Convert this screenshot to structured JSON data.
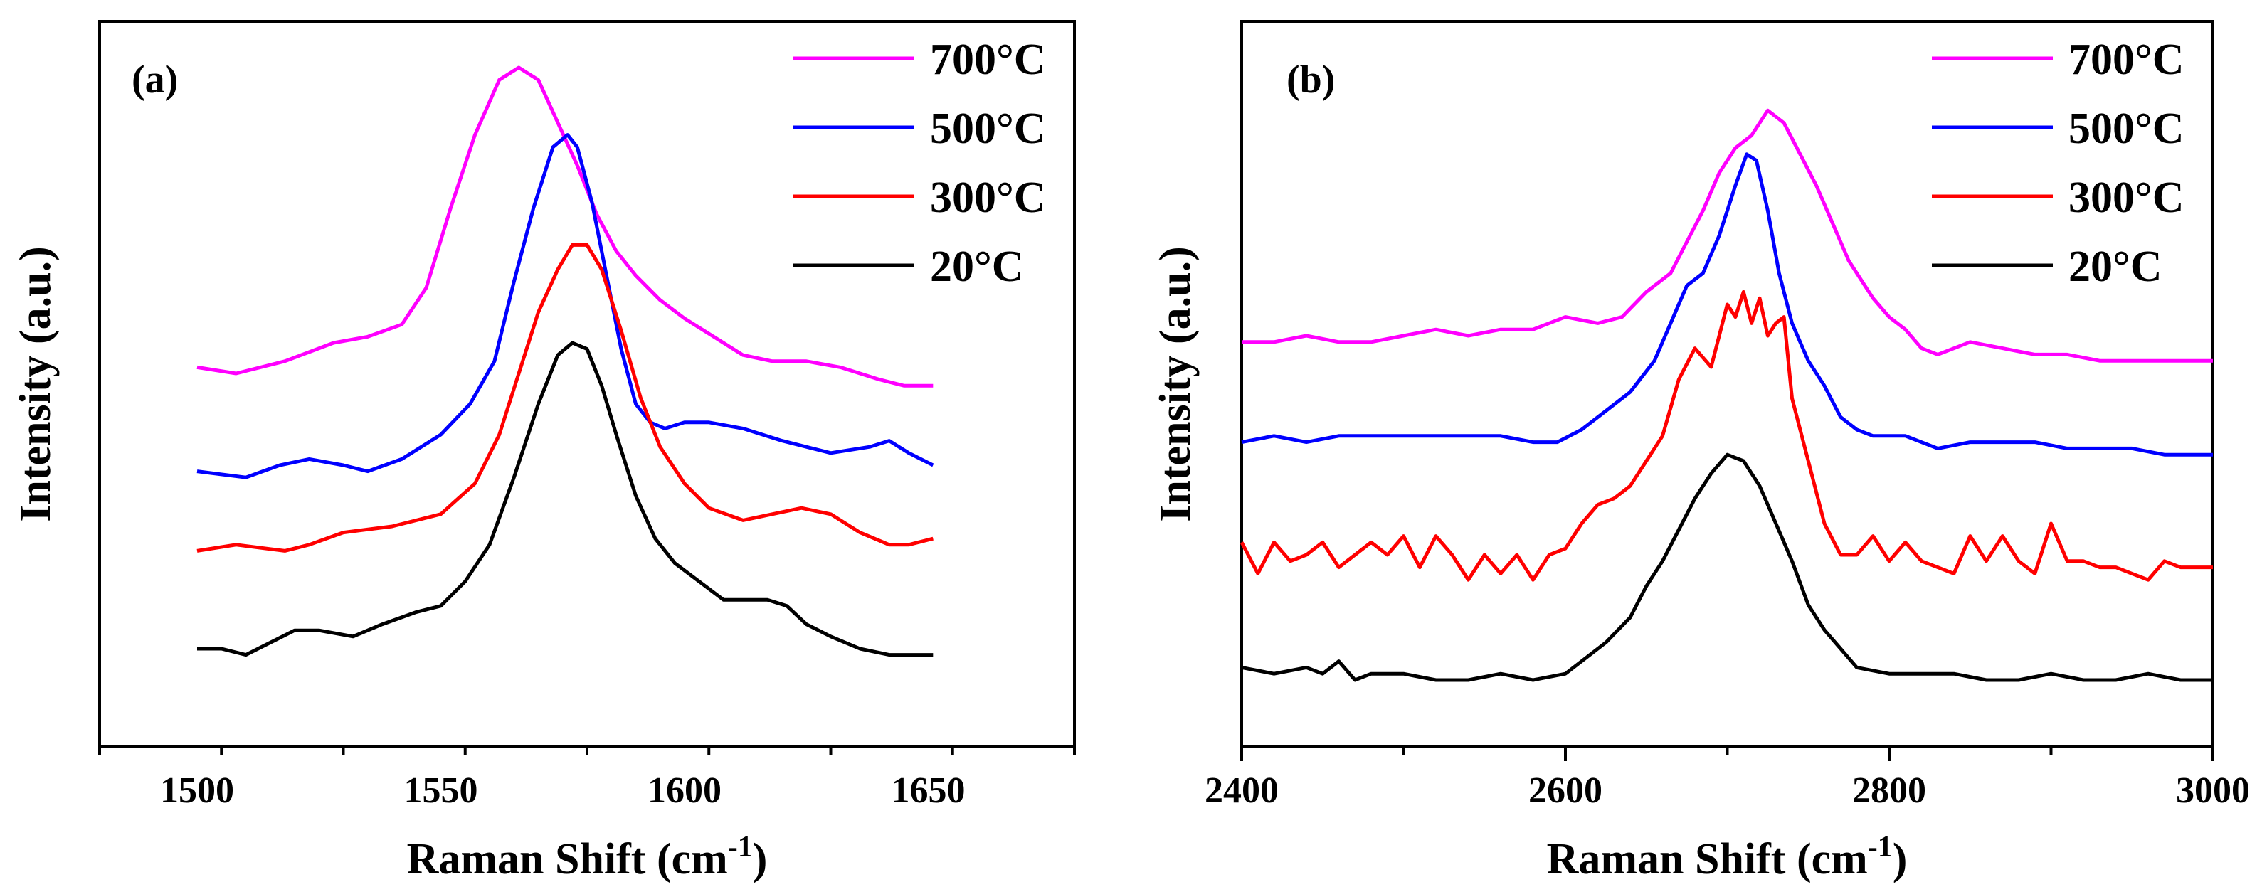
{
  "chart_data": [
    {
      "type": "line",
      "panel_label": "(a)",
      "xlabel": "Raman Shift (cm",
      "xlabel_sup": "-1",
      "xlabel_close": ")",
      "ylabel": "Intensity (a.u.)",
      "xlim": [
        1480,
        1680
      ],
      "ylim": [
        0,
        1
      ],
      "x_ticks": [
        1500,
        1550,
        1600,
        1650
      ],
      "x_tick_labels": [
        "1500",
        "1550",
        "1600",
        "1650"
      ],
      "y_ticks_shown": false,
      "legend": "top-right",
      "series": [
        {
          "name": "700°C",
          "color": "#ff00ff",
          "x": [
            1500,
            1508,
            1518,
            1528,
            1535,
            1542,
            1547,
            1552,
            1557,
            1562,
            1566,
            1570,
            1574,
            1578,
            1582,
            1586,
            1590,
            1595,
            1600,
            1606,
            1612,
            1618,
            1625,
            1632,
            1640,
            1645,
            1651
          ],
          "y": [
            0.51,
            0.5,
            0.52,
            0.55,
            0.56,
            0.58,
            0.64,
            0.77,
            0.89,
            0.98,
            1.0,
            0.98,
            0.91,
            0.84,
            0.76,
            0.7,
            0.66,
            0.62,
            0.59,
            0.56,
            0.53,
            0.52,
            0.52,
            0.51,
            0.49,
            0.48,
            0.48
          ]
        },
        {
          "name": "500°C",
          "color": "#0000ff",
          "x": [
            1500,
            1510,
            1517,
            1523,
            1530,
            1535,
            1542,
            1550,
            1556,
            1561,
            1565,
            1569,
            1573,
            1576,
            1578,
            1581,
            1584,
            1587,
            1590,
            1593,
            1596,
            1600,
            1605,
            1612,
            1620,
            1630,
            1638,
            1642,
            1646,
            1651
          ],
          "y": [
            0.34,
            0.33,
            0.35,
            0.36,
            0.35,
            0.34,
            0.36,
            0.4,
            0.45,
            0.52,
            0.65,
            0.77,
            0.87,
            0.89,
            0.87,
            0.78,
            0.66,
            0.54,
            0.45,
            0.42,
            0.41,
            0.42,
            0.42,
            0.41,
            0.39,
            0.37,
            0.38,
            0.39,
            0.37,
            0.35
          ]
        },
        {
          "name": "300°C",
          "color": "#ff0000",
          "x": [
            1500,
            1508,
            1518,
            1523,
            1530,
            1540,
            1550,
            1557,
            1562,
            1566,
            1570,
            1574,
            1577,
            1580,
            1583,
            1587,
            1591,
            1595,
            1600,
            1605,
            1612,
            1618,
            1624,
            1630,
            1636,
            1642,
            1646,
            1651
          ],
          "y": [
            0.21,
            0.22,
            0.21,
            0.22,
            0.24,
            0.25,
            0.27,
            0.32,
            0.4,
            0.5,
            0.6,
            0.67,
            0.71,
            0.71,
            0.67,
            0.57,
            0.46,
            0.38,
            0.32,
            0.28,
            0.26,
            0.27,
            0.28,
            0.27,
            0.24,
            0.22,
            0.22,
            0.23
          ]
        },
        {
          "name": "20°C",
          "color": "#000000",
          "x": [
            1500,
            1505,
            1510,
            1515,
            1520,
            1525,
            1532,
            1538,
            1545,
            1550,
            1555,
            1560,
            1565,
            1570,
            1574,
            1577,
            1580,
            1583,
            1586,
            1590,
            1594,
            1598,
            1603,
            1608,
            1613,
            1617,
            1621,
            1625,
            1630,
            1636,
            1642,
            1646,
            1651
          ],
          "y": [
            0.05,
            0.05,
            0.04,
            0.06,
            0.08,
            0.08,
            0.07,
            0.09,
            0.11,
            0.12,
            0.16,
            0.22,
            0.33,
            0.45,
            0.53,
            0.55,
            0.54,
            0.48,
            0.4,
            0.3,
            0.23,
            0.19,
            0.16,
            0.13,
            0.13,
            0.13,
            0.12,
            0.09,
            0.07,
            0.05,
            0.04,
            0.04,
            0.04
          ]
        }
      ]
    },
    {
      "type": "line",
      "panel_label": "(b)",
      "xlabel": "Raman Shift (cm",
      "xlabel_sup": "-1",
      "xlabel_close": ")",
      "ylabel": "Intensity (a.u.)",
      "xlim": [
        2400,
        3000
      ],
      "ylim": [
        0,
        1
      ],
      "x_ticks": [
        2400,
        2600,
        2800,
        3000
      ],
      "x_tick_labels": [
        "2400",
        "2600",
        "2800",
        "3000"
      ],
      "y_ticks_shown": false,
      "legend": "top-right",
      "series": [
        {
          "name": "700°C",
          "color": "#ff00ff",
          "x": [
            2400,
            2420,
            2440,
            2460,
            2480,
            2500,
            2520,
            2540,
            2560,
            2580,
            2600,
            2620,
            2635,
            2650,
            2665,
            2675,
            2685,
            2695,
            2705,
            2715,
            2725,
            2735,
            2745,
            2755,
            2765,
            2775,
            2790,
            2800,
            2810,
            2820,
            2830,
            2850,
            2870,
            2890,
            2910,
            2930,
            2950,
            2970,
            2990,
            3000
          ],
          "y": [
            0.59,
            0.59,
            0.6,
            0.59,
            0.59,
            0.6,
            0.61,
            0.6,
            0.61,
            0.61,
            0.63,
            0.62,
            0.63,
            0.67,
            0.7,
            0.75,
            0.8,
            0.86,
            0.9,
            0.92,
            0.96,
            0.94,
            0.89,
            0.84,
            0.78,
            0.72,
            0.66,
            0.63,
            0.61,
            0.58,
            0.57,
            0.59,
            0.58,
            0.57,
            0.57,
            0.56,
            0.56,
            0.56,
            0.56,
            0.56
          ]
        },
        {
          "name": "500°C",
          "color": "#0000ff",
          "x": [
            2400,
            2420,
            2440,
            2460,
            2480,
            2500,
            2520,
            2540,
            2560,
            2580,
            2595,
            2610,
            2625,
            2640,
            2655,
            2665,
            2675,
            2685,
            2695,
            2705,
            2712,
            2718,
            2725,
            2732,
            2740,
            2750,
            2760,
            2770,
            2780,
            2790,
            2810,
            2830,
            2850,
            2870,
            2890,
            2910,
            2930,
            2950,
            2970,
            2990,
            3000
          ],
          "y": [
            0.43,
            0.44,
            0.43,
            0.44,
            0.44,
            0.44,
            0.44,
            0.44,
            0.44,
            0.43,
            0.43,
            0.45,
            0.48,
            0.51,
            0.56,
            0.62,
            0.68,
            0.7,
            0.76,
            0.84,
            0.89,
            0.88,
            0.8,
            0.7,
            0.62,
            0.56,
            0.52,
            0.47,
            0.45,
            0.44,
            0.44,
            0.42,
            0.43,
            0.43,
            0.43,
            0.42,
            0.42,
            0.42,
            0.41,
            0.41,
            0.41
          ]
        },
        {
          "name": "300°C",
          "color": "#ff0000",
          "x": [
            2400,
            2410,
            2420,
            2430,
            2440,
            2450,
            2460,
            2470,
            2480,
            2490,
            2500,
            2510,
            2520,
            2530,
            2540,
            2550,
            2560,
            2570,
            2580,
            2590,
            2600,
            2610,
            2620,
            2630,
            2640,
            2650,
            2660,
            2670,
            2680,
            2690,
            2700,
            2705,
            2710,
            2715,
            2720,
            2725,
            2730,
            2735,
            2740,
            2750,
            2760,
            2770,
            2780,
            2790,
            2800,
            2810,
            2820,
            2830,
            2840,
            2850,
            2860,
            2870,
            2880,
            2890,
            2900,
            2910,
            2920,
            2930,
            2940,
            2950,
            2960,
            2970,
            2980,
            2990,
            3000
          ],
          "y": [
            0.27,
            0.22,
            0.27,
            0.24,
            0.25,
            0.27,
            0.23,
            0.25,
            0.27,
            0.25,
            0.28,
            0.23,
            0.28,
            0.25,
            0.21,
            0.25,
            0.22,
            0.25,
            0.21,
            0.25,
            0.26,
            0.3,
            0.33,
            0.34,
            0.36,
            0.4,
            0.44,
            0.53,
            0.58,
            0.55,
            0.65,
            0.63,
            0.67,
            0.62,
            0.66,
            0.6,
            0.62,
            0.63,
            0.5,
            0.4,
            0.3,
            0.25,
            0.25,
            0.28,
            0.24,
            0.27,
            0.24,
            0.23,
            0.22,
            0.28,
            0.24,
            0.28,
            0.24,
            0.22,
            0.3,
            0.24,
            0.24,
            0.23,
            0.23,
            0.22,
            0.21,
            0.24,
            0.23,
            0.23,
            0.23
          ]
        },
        {
          "name": "20°C",
          "color": "#000000",
          "x": [
            2400,
            2420,
            2440,
            2450,
            2460,
            2470,
            2480,
            2500,
            2520,
            2540,
            2560,
            2580,
            2600,
            2615,
            2625,
            2640,
            2650,
            2660,
            2670,
            2680,
            2690,
            2700,
            2710,
            2720,
            2730,
            2740,
            2750,
            2760,
            2770,
            2780,
            2800,
            2820,
            2840,
            2860,
            2880,
            2900,
            2920,
            2940,
            2960,
            2980,
            3000
          ],
          "y": [
            0.07,
            0.06,
            0.07,
            0.06,
            0.08,
            0.05,
            0.06,
            0.06,
            0.05,
            0.05,
            0.06,
            0.05,
            0.06,
            0.09,
            0.11,
            0.15,
            0.2,
            0.24,
            0.29,
            0.34,
            0.38,
            0.41,
            0.4,
            0.36,
            0.3,
            0.24,
            0.17,
            0.13,
            0.1,
            0.07,
            0.06,
            0.06,
            0.06,
            0.05,
            0.05,
            0.06,
            0.05,
            0.05,
            0.06,
            0.05,
            0.05
          ]
        }
      ]
    }
  ]
}
